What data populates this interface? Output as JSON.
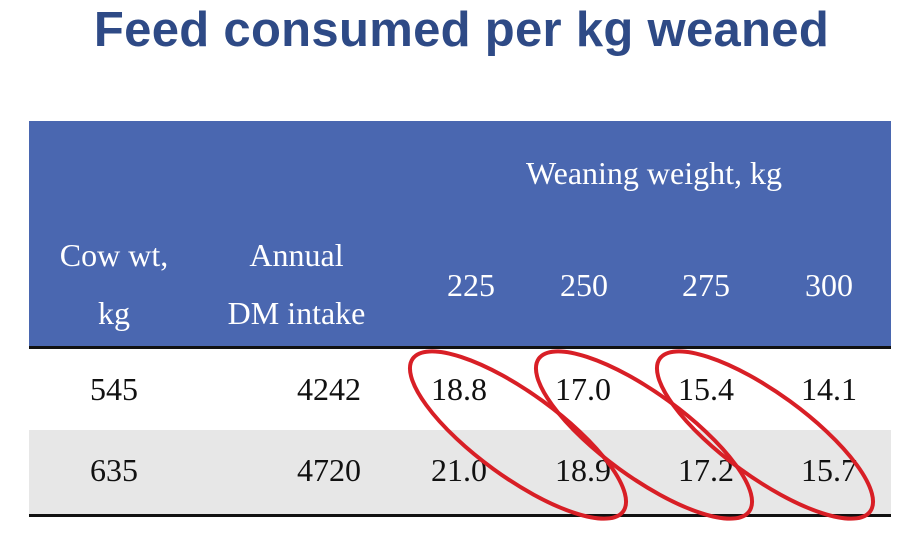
{
  "title": "Feed consumed per kg weaned",
  "table": {
    "group_header": "Weaning weight, kg",
    "col_cow_wt_line1": "Cow wt,",
    "col_cow_wt_line2": "kg",
    "col_intake_line1": "Annual",
    "col_intake_line2": "DM intake",
    "weights": [
      "225",
      "250",
      "275",
      "300"
    ],
    "rows": [
      {
        "cow_wt": "545",
        "intake": "4242",
        "values": [
          "18.8",
          "17.0",
          "15.4",
          "14.1"
        ]
      },
      {
        "cow_wt": "635",
        "intake": "4720",
        "values": [
          "21.0",
          "18.9",
          "17.2",
          "15.7"
        ]
      }
    ]
  },
  "annotation_color": "#d81f26"
}
